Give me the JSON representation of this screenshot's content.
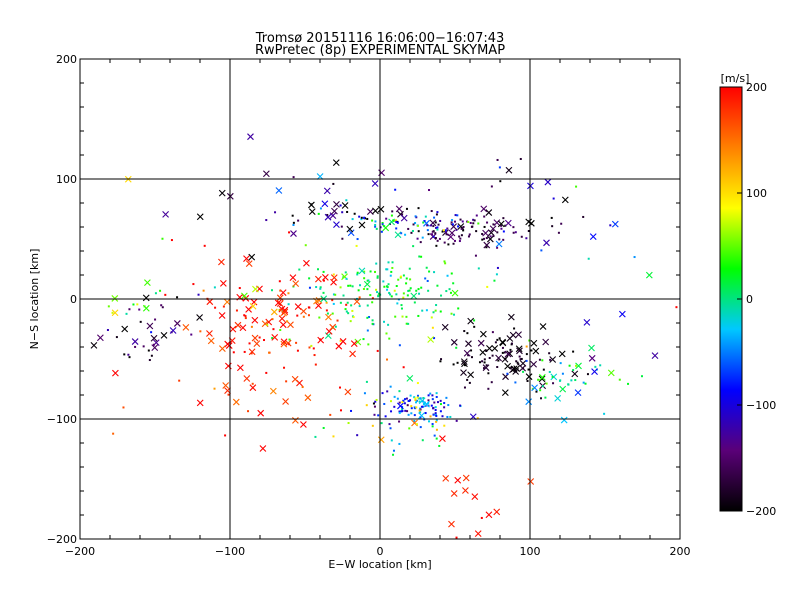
{
  "chart_data": {
    "type": "scatter",
    "title": "Tromsø 20151116 16:06:00−16:07:43",
    "subtitle": "RwPretec (8p) EXPERIMENTAL SKYMAP",
    "xlabel": "E−W location [km]",
    "ylabel": "N−S location [km]",
    "xlim": [
      -200,
      200
    ],
    "ylim": [
      -200,
      200
    ],
    "xticks": [
      -200,
      -100,
      0,
      100,
      200
    ],
    "yticks": [
      -200,
      -100,
      0,
      100,
      200
    ],
    "x_tick_labels": [
      "−200",
      "−100",
      "0",
      "100",
      "200"
    ],
    "y_tick_labels": [
      "−200",
      "−100",
      "0",
      "100",
      "200"
    ],
    "grid": true,
    "colorbar": {
      "label": "[m/s]",
      "range": [
        -200,
        200
      ],
      "ticks": [
        -200,
        -100,
        0,
        100,
        200
      ],
      "tick_labels": [
        "−200",
        "−100",
        "0",
        "100",
        "200"
      ],
      "colors": [
        "#000000",
        "#5a0078",
        "#0000ff",
        "#00c8ff",
        "#00ff00",
        "#ffff00",
        "#ff8000",
        "#ff0000"
      ]
    },
    "marker_legend": "",
    "clusters": [
      {
        "x": 55,
        "y": 57,
        "sx": 18,
        "sy": 7,
        "v": -170,
        "vs": 25,
        "n": 90,
        "cross": 0.15
      },
      {
        "x": 25,
        "y": 62,
        "sx": 20,
        "sy": 5,
        "v": -60,
        "vs": 70,
        "n": 55,
        "cross": 0.15
      },
      {
        "x": -20,
        "y": 67,
        "sx": 25,
        "sy": 8,
        "v": -160,
        "vs": 50,
        "n": 35,
        "cross": 0.35
      },
      {
        "x": 0,
        "y": 15,
        "sx": 28,
        "sy": 12,
        "v": 10,
        "vs": 25,
        "n": 110,
        "cross": 0.03
      },
      {
        "x": 0,
        "y": -15,
        "sx": 35,
        "sy": 15,
        "v": 30,
        "vs": 40,
        "n": 70,
        "cross": 0.05
      },
      {
        "x": -75,
        "y": -30,
        "sx": 28,
        "sy": 30,
        "v": 190,
        "vs": 25,
        "n": 95,
        "cross": 0.5
      },
      {
        "x": -55,
        "y": -5,
        "sx": 25,
        "sy": 12,
        "v": 175,
        "vs": 40,
        "n": 35,
        "cross": 0.6
      },
      {
        "x": 85,
        "y": -50,
        "sx": 22,
        "sy": 15,
        "v": -190,
        "vs": 15,
        "n": 110,
        "cross": 0.4
      },
      {
        "x": 120,
        "y": -68,
        "sx": 15,
        "sy": 10,
        "v": 0,
        "vs": 40,
        "n": 40,
        "cross": 0.2
      },
      {
        "x": 28,
        "y": -90,
        "sx": 12,
        "sy": 6,
        "v": -80,
        "vs": 40,
        "n": 95,
        "cross": 0.03
      },
      {
        "x": 15,
        "y": -100,
        "sx": 25,
        "sy": 15,
        "v": 30,
        "vs": 100,
        "n": 55,
        "cross": 0.1
      },
      {
        "x": -155,
        "y": -25,
        "sx": 15,
        "sy": 15,
        "v": -170,
        "vs": 40,
        "n": 35,
        "cross": 0.4
      },
      {
        "x": -165,
        "y": -5,
        "sx": 10,
        "sy": 10,
        "v": 60,
        "vs": 50,
        "n": 12,
        "cross": 0.5
      },
      {
        "x": 70,
        "y": -170,
        "sx": 18,
        "sy": 18,
        "v": 195,
        "vs": 10,
        "n": 14,
        "cross": 0.9
      },
      {
        "x": -40,
        "y": 90,
        "sx": 60,
        "sy": 15,
        "v": -170,
        "vs": 60,
        "n": 35,
        "cross": 0.6
      },
      {
        "x": 100,
        "y": 60,
        "sx": 30,
        "sy": 25,
        "v": -150,
        "vs": 60,
        "n": 25,
        "cross": 0.5
      },
      {
        "x": -60,
        "y": -100,
        "sx": 50,
        "sy": 25,
        "v": 180,
        "vs": 30,
        "n": 18,
        "cross": 0.4
      },
      {
        "x": 150,
        "y": -20,
        "sx": 45,
        "sy": 60,
        "v": 0,
        "vs": 100,
        "n": 22,
        "cross": 0.7
      },
      {
        "x": -110,
        "y": 40,
        "sx": 30,
        "sy": 40,
        "v": 40,
        "vs": 120,
        "n": 16,
        "cross": 0.6
      }
    ]
  }
}
